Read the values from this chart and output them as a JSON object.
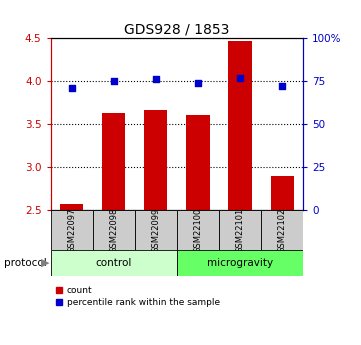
{
  "title": "GDS928 / 1853",
  "samples": [
    "GSM22097",
    "GSM22098",
    "GSM22099",
    "GSM22100",
    "GSM22101",
    "GSM22102"
  ],
  "bar_values": [
    2.57,
    3.63,
    3.67,
    3.61,
    4.47,
    2.9
  ],
  "percentile_values": [
    71,
    75,
    76,
    74,
    77,
    72
  ],
  "bar_color": "#cc0000",
  "dot_color": "#0000cc",
  "ylim_left": [
    2.5,
    4.5
  ],
  "ylim_right": [
    0,
    100
  ],
  "yticks_left": [
    2.5,
    3.0,
    3.5,
    4.0,
    4.5
  ],
  "yticks_right": [
    0,
    25,
    50,
    75,
    100
  ],
  "ytick_labels_right": [
    "0",
    "25",
    "50",
    "75",
    "100%"
  ],
  "groups": [
    {
      "label": "control",
      "start": 0,
      "end": 3,
      "color": "#ccffcc"
    },
    {
      "label": "microgravity",
      "start": 3,
      "end": 6,
      "color": "#66ff66"
    }
  ],
  "protocol_label": "protocol",
  "legend_items": [
    {
      "label": "count",
      "color": "#cc0000"
    },
    {
      "label": "percentile rank within the sample",
      "color": "#0000cc"
    }
  ],
  "bar_width": 0.55,
  "bar_bottom": 2.5,
  "grid_color": "#000000",
  "background_color": "#ffffff",
  "sample_box_color": "#cccccc"
}
